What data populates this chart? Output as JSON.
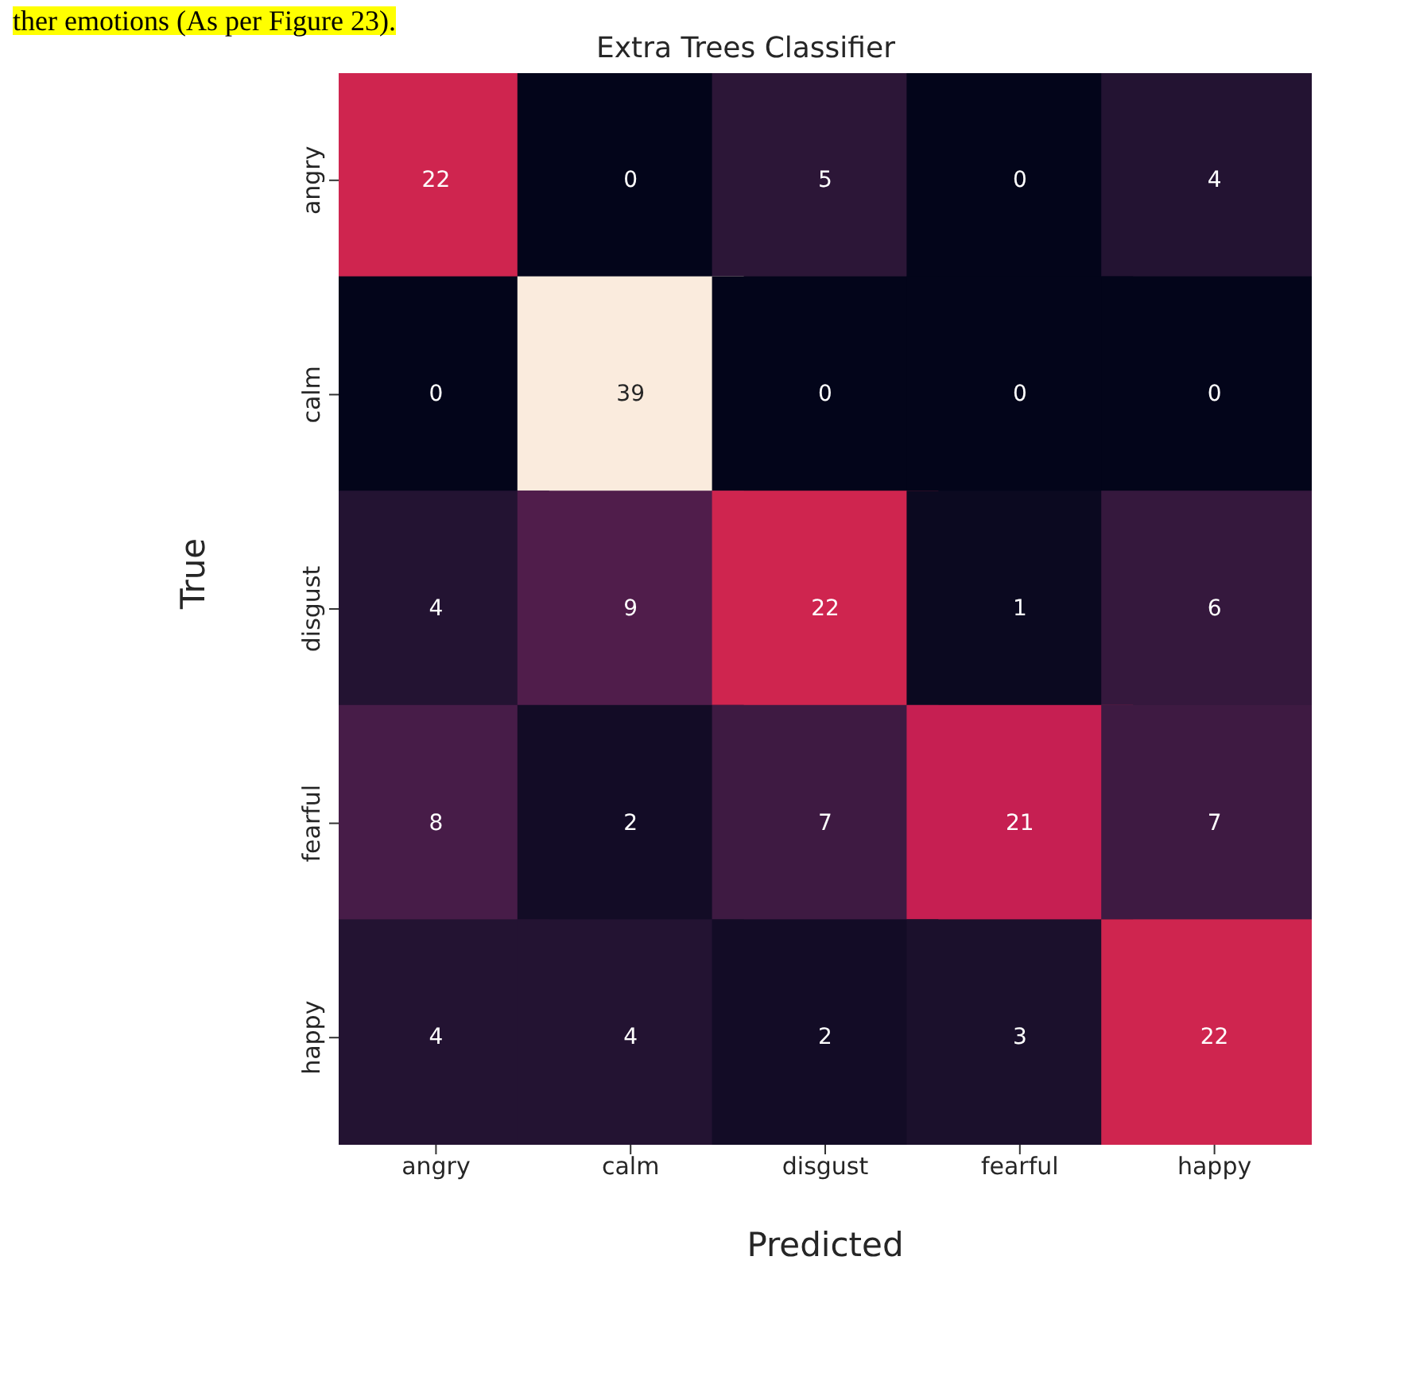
{
  "chart_data": {
    "type": "heatmap",
    "title": "Extra Trees Classifier",
    "xlabel": "Predicted",
    "ylabel": "True",
    "annotations": [
      "ther emotions (As per Figure 23)."
    ],
    "categories": [
      "angry",
      "calm",
      "disgust",
      "fearful",
      "happy"
    ],
    "y_categories": [
      "angry",
      "calm",
      "disgust",
      "fearful",
      "happy"
    ],
    "cells": [
      [
        22,
        0,
        5,
        0,
        4
      ],
      [
        0,
        39,
        0,
        0,
        0
      ],
      [
        4,
        9,
        22,
        1,
        6
      ],
      [
        8,
        2,
        7,
        21,
        7
      ],
      [
        4,
        4,
        2,
        3,
        22
      ]
    ],
    "data_labels": true
  }
}
